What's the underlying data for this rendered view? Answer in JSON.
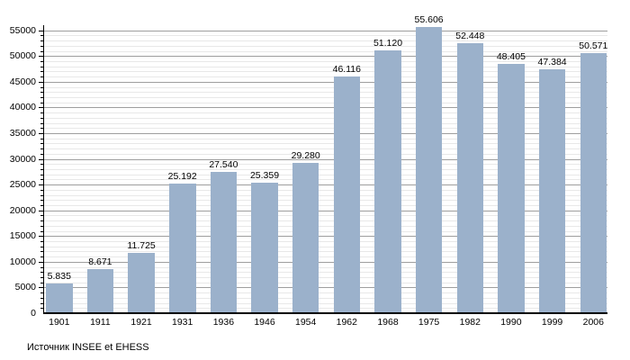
{
  "footer": {
    "source_label": "Источник INSEE et EHESS"
  },
  "colors": {
    "bar": "#9bb1cb",
    "grid_major": "#9e9e9e",
    "grid_minor": "#e8e8e8",
    "axis": "#000000",
    "text": "#000000",
    "background": "#ffffff"
  },
  "chart_data": {
    "type": "bar",
    "title": "",
    "xlabel": "",
    "ylabel": "",
    "categories": [
      "1901",
      "1911",
      "1921",
      "1931",
      "1936",
      "1946",
      "1954",
      "1962",
      "1968",
      "1975",
      "1982",
      "1990",
      "1999",
      "2006"
    ],
    "values": [
      5835,
      8671,
      11725,
      25192,
      27540,
      25359,
      29280,
      46116,
      51120,
      55606,
      52448,
      48405,
      47384,
      50571
    ],
    "value_labels": [
      "5.835",
      "8.671",
      "11.725",
      "25.192",
      "27.540",
      "25.359",
      "29.280",
      "46.116",
      "51.120",
      "55.606",
      "52.448",
      "48.405",
      "47.384",
      "50.571"
    ],
    "ylim": [
      0,
      56000
    ],
    "y_major_step": 5000,
    "y_minor_step": 1000,
    "y_tick_labels": [
      "0",
      "5000",
      "10000",
      "15000",
      "20000",
      "25000",
      "30000",
      "35000",
      "40000",
      "45000",
      "50000",
      "55000"
    ],
    "grid": true,
    "legend_position": "none"
  }
}
